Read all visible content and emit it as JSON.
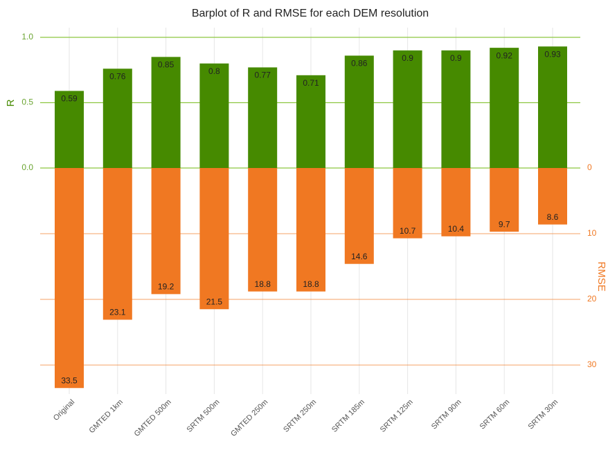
{
  "chart_data": {
    "type": "bar",
    "title": "Barplot of R and RMSE for each DEM resolution",
    "categories": [
      "Original",
      "GMTED 1km",
      "GMTED 500m",
      "SRTM 500m",
      "GMTED 250m",
      "SRTM 250m",
      "SRTM 185m",
      "SRTM 125m",
      "SRTM 90m",
      "SRTM 60m",
      "SRTM 30m"
    ],
    "series": [
      {
        "name": "R",
        "color": "#468a00",
        "values": [
          0.59,
          0.76,
          0.85,
          0.8,
          0.77,
          0.71,
          0.86,
          0.9,
          0.9,
          0.92,
          0.93
        ]
      },
      {
        "name": "RMSE",
        "color": "#f07822",
        "axis": "y2",
        "values": [
          33.5,
          23.1,
          19.2,
          21.5,
          18.8,
          18.8,
          14.6,
          10.7,
          10.4,
          9.7,
          8.6
        ]
      }
    ],
    "ylim": [
      0,
      1.0
    ],
    "yticks": [
      {
        "value": 0,
        "label": "0.0"
      },
      0.5,
      {
        "value": 1,
        "label": "1.0"
      }
    ],
    "y2lim": [
      0,
      30
    ],
    "y2ticks": [
      0,
      10,
      20,
      30
    ],
    "y2_inverted": true,
    "grid": true
  }
}
